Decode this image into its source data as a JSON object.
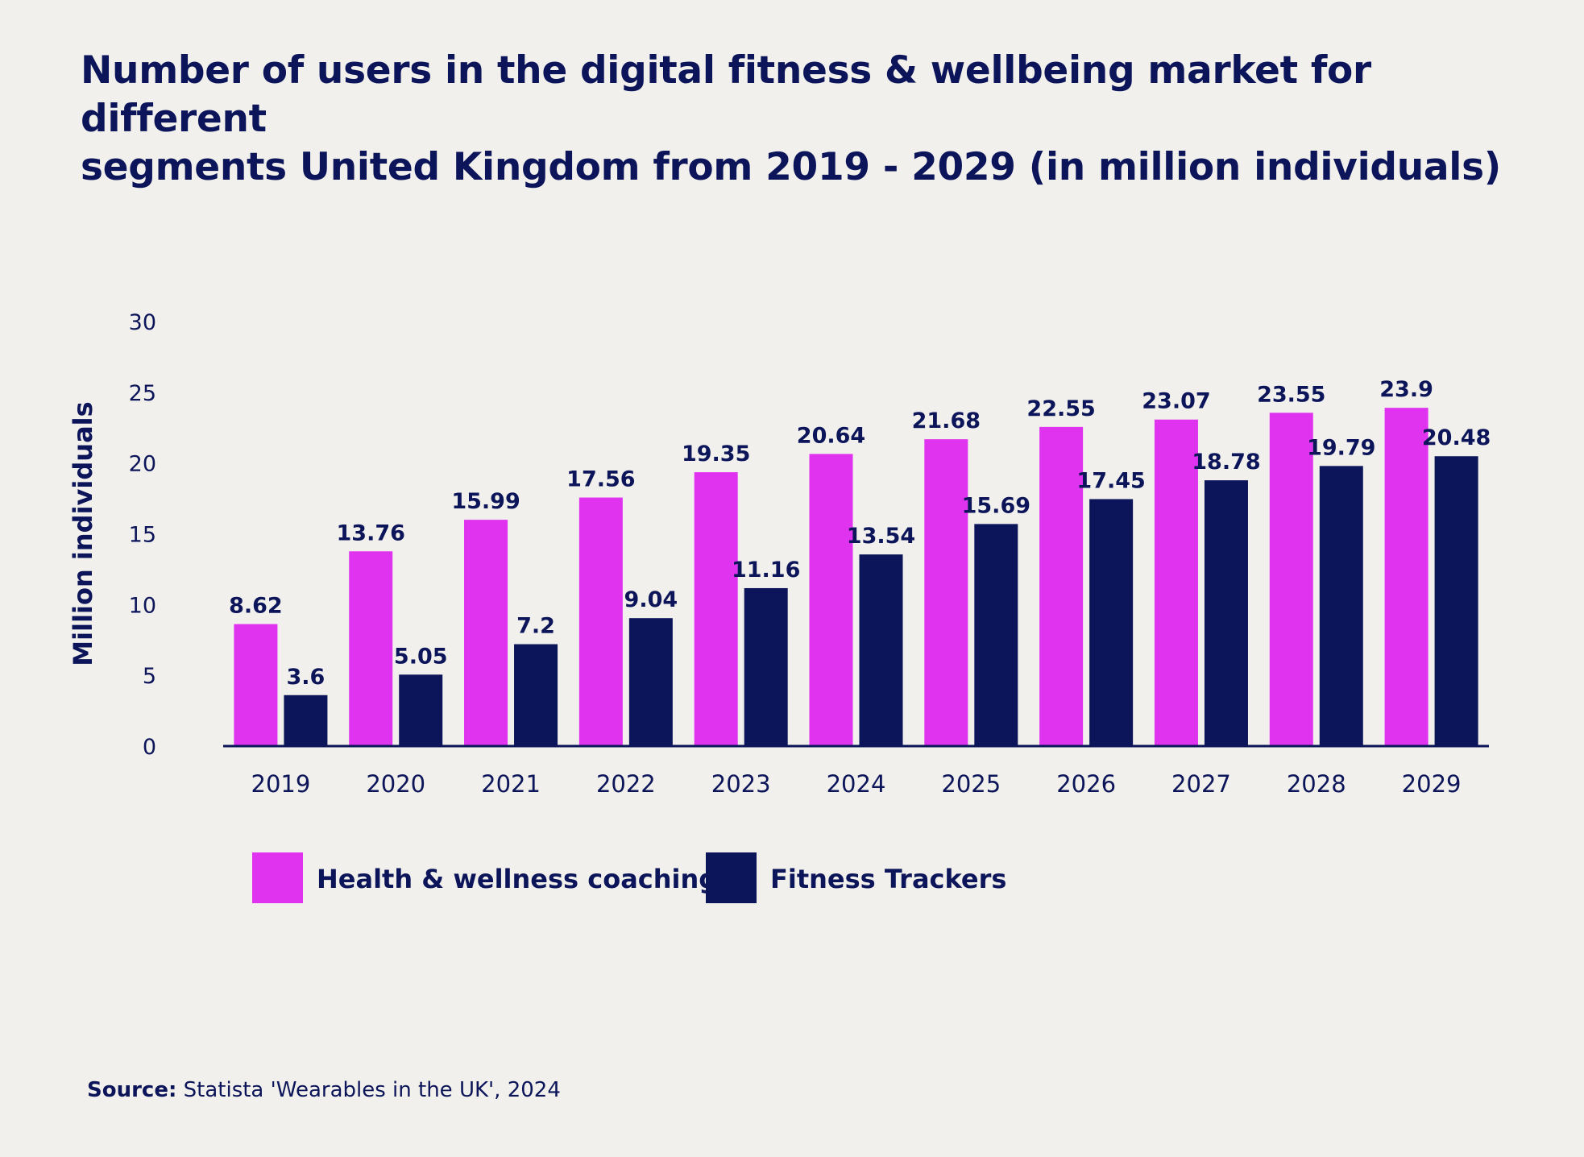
{
  "title_lines": [
    "Number of users in the digital fitness & wellbeing market for different",
    "segments United Kingdom from 2019 - 2029 (in million individuals)"
  ],
  "legend": {
    "items": [
      {
        "label": "Health & wellness coaching",
        "color": "#e033ef"
      },
      {
        "label": "Fitness Trackers",
        "color": "#0c1559"
      }
    ]
  },
  "source": {
    "prefix": "Source:",
    "text": " Statista 'Wearables in the UK', 2024"
  },
  "chart_data": {
    "type": "bar",
    "title": "Number of users in the digital fitness & wellbeing market for different segments United Kingdom from 2019 - 2029 (in million individuals)",
    "xlabel": "",
    "ylabel": "Million individuals",
    "ylim": [
      0,
      30
    ],
    "yticks": [
      0,
      5,
      10,
      15,
      20,
      25,
      30
    ],
    "grid": false,
    "legend_position": "bottom",
    "categories": [
      "2019",
      "2020",
      "2021",
      "2022",
      "2023",
      "2024",
      "2025",
      "2026",
      "2027",
      "2028",
      "2029"
    ],
    "series": [
      {
        "name": "Health & wellness coaching",
        "color": "#e033ef",
        "values": [
          8.62,
          13.76,
          15.99,
          17.56,
          19.35,
          20.64,
          21.68,
          22.55,
          23.07,
          23.55,
          23.9
        ],
        "labels": [
          "8.62",
          "13.76",
          "15.99",
          "17.56",
          "19.35",
          "20.64",
          "21.68",
          "22.55",
          "23.07",
          "23.55",
          "23.9"
        ]
      },
      {
        "name": "Fitness Trackers",
        "color": "#0c1559",
        "values": [
          3.6,
          5.05,
          7.2,
          9.04,
          11.16,
          13.54,
          15.69,
          17.45,
          18.78,
          19.79,
          20.48
        ],
        "labels": [
          "3.6",
          "5.05",
          "7.2",
          "9.04",
          "11.16",
          "13.54",
          "15.69",
          "17.45",
          "18.78",
          "19.79",
          "20.48"
        ]
      }
    ]
  }
}
